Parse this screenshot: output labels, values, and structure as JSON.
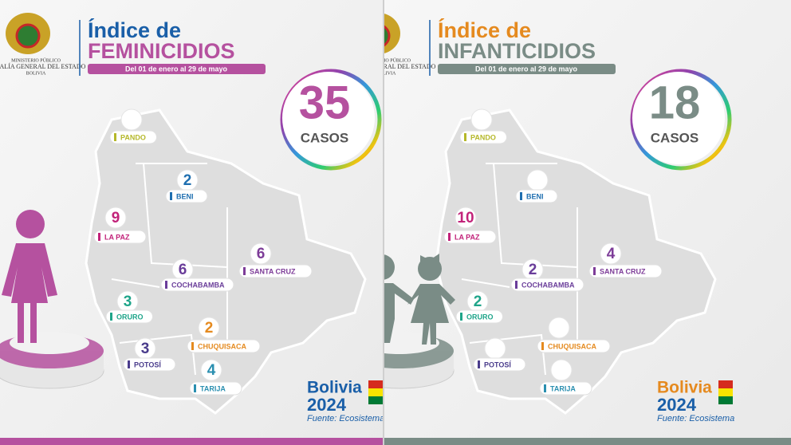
{
  "panels": [
    {
      "ministry": [
        "MINISTERIO PÚBLICO",
        "FISCALÍA GENERAL DEL ESTADO",
        "BOLIVIA"
      ],
      "title_line1": "Índice de",
      "title_line2": "FEMINICIDIOS",
      "date_range": "Del 01 de enero al 29 de mayo",
      "total": "35",
      "total_label": "CASOS",
      "departments": [
        {
          "name": "PANDO"
        },
        {
          "name": "BENI",
          "count": "2"
        },
        {
          "name": "LA PAZ",
          "count": "9"
        },
        {
          "name": "SANTA CRUZ",
          "count": "6"
        },
        {
          "name": "COCHABAMBA",
          "count": "6"
        },
        {
          "name": "ORURO",
          "count": "3"
        },
        {
          "name": "CHUQUISACA",
          "count": "2"
        },
        {
          "name": "POTOSÍ",
          "count": "3"
        },
        {
          "name": "TARIJA",
          "count": "4"
        }
      ],
      "brand": "Bolivia",
      "year": "2024",
      "source": "Fuente: Ecosistema"
    },
    {
      "ministry": [
        "MINISTERIO PÚBLICO",
        "FISCALÍA GENERAL DEL ESTADO",
        "BOLIVIA"
      ],
      "title_line1": "Índice de",
      "title_line2": "INFANTICIDIOS",
      "date_range": "Del 01 de enero al 29 de mayo",
      "total": "18",
      "total_label": "CASOS",
      "departments": [
        {
          "name": "PANDO"
        },
        {
          "name": "BENI"
        },
        {
          "name": "LA PAZ",
          "count": "10"
        },
        {
          "name": "SANTA CRUZ",
          "count": "4"
        },
        {
          "name": "COCHABAMBA",
          "count": "2"
        },
        {
          "name": "ORURO",
          "count": "2"
        },
        {
          "name": "CHUQUISACA"
        },
        {
          "name": "POTOSÍ"
        },
        {
          "name": "TARIJA"
        }
      ],
      "brand": "Bolivia",
      "year": "2024",
      "source": "Fuente: Ecosistema"
    }
  ]
}
